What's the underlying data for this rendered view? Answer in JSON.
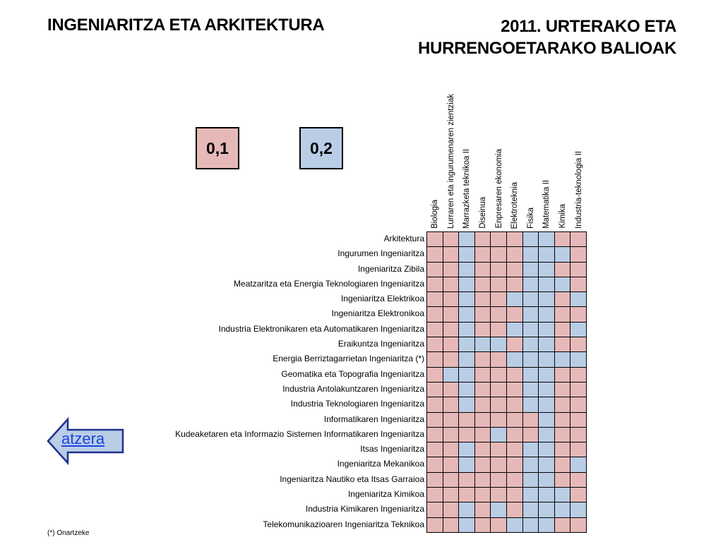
{
  "header": {
    "title_left": "INGENIARITZA ETA ARKITEKTURA",
    "title_right_line1": "2011. URTERAKO ETA",
    "title_right_line2": "HURRENGOETARAKO BALIOAK"
  },
  "legend": {
    "weight_01": {
      "label": "0,1",
      "color": "#e6b9b8"
    },
    "weight_02": {
      "label": "0,2",
      "color": "#b9cde5"
    }
  },
  "colors": {
    "grid_line": "#000000",
    "back_arrow_fill": "#b9cde5",
    "back_arrow_stroke": "#1f2f8f",
    "link": "#1a43e0"
  },
  "columns": [
    "Biologia",
    "Lurraren eta ingurumenaren zientziak",
    "Marrazketa teknikoa II",
    "Diseinua",
    "Enpresaren ekonomia",
    "Elektroteknia",
    "Fisika",
    "Matematika II",
    "Kimika",
    "Industria-teknologia II"
  ],
  "rows": [
    {
      "label": "Arkitektura",
      "values": [
        "0,1",
        "0,1",
        "0,2",
        "0,1",
        "0,1",
        "0,1",
        "0,2",
        "0,2",
        "0,1",
        "0,1"
      ]
    },
    {
      "label": "Ingurumen Ingeniaritza",
      "values": [
        "0,1",
        "0,1",
        "0,2",
        "0,1",
        "0,1",
        "0,1",
        "0,2",
        "0,2",
        "0,2",
        "0,1"
      ]
    },
    {
      "label": "Ingeniaritza Zibila",
      "values": [
        "0,1",
        "0,1",
        "0,2",
        "0,1",
        "0,1",
        "0,1",
        "0,2",
        "0,2",
        "0,1",
        "0,1"
      ]
    },
    {
      "label": "Meatzaritza eta Energia Teknologiaren Ingeniaritza",
      "values": [
        "0,1",
        "0,1",
        "0,2",
        "0,1",
        "0,1",
        "0,1",
        "0,2",
        "0,2",
        "0,2",
        "0,1"
      ]
    },
    {
      "label": "Ingeniaritza Elektrikoa",
      "values": [
        "0,1",
        "0,1",
        "0,2",
        "0,1",
        "0,1",
        "0,2",
        "0,2",
        "0,2",
        "0,1",
        "0,2"
      ]
    },
    {
      "label": "Ingeniaritza Elektronikoa",
      "values": [
        "0,1",
        "0,1",
        "0,2",
        "0,1",
        "0,1",
        "0,1",
        "0,2",
        "0,2",
        "0,1",
        "0,1"
      ]
    },
    {
      "label": "Industria Elektronikaren eta Automatikaren Ingeniaritza",
      "values": [
        "0,1",
        "0,1",
        "0,2",
        "0,1",
        "0,1",
        "0,2",
        "0,2",
        "0,2",
        "0,1",
        "0,2"
      ]
    },
    {
      "label": "Eraikuntza Ingeniaritza",
      "values": [
        "0,1",
        "0,1",
        "0,2",
        "0,2",
        "0,2",
        "0,1",
        "0,2",
        "0,2",
        "0,1",
        "0,1"
      ]
    },
    {
      "label": "Energia Berriztagarrietan Ingeniaritza (*)",
      "values": [
        "0,1",
        "0,1",
        "0,2",
        "0,1",
        "0,1",
        "0,2",
        "0,2",
        "0,2",
        "0,2",
        "0,2"
      ]
    },
    {
      "label": "Geomatika eta Topografia Ingeniaritza",
      "values": [
        "0,1",
        "0,2",
        "0,2",
        "0,1",
        "0,1",
        "0,1",
        "0,2",
        "0,2",
        "0,1",
        "0,1"
      ]
    },
    {
      "label": "Industria Antolakuntzaren Ingeniaritza",
      "values": [
        "0,1",
        "0,1",
        "0,2",
        "0,1",
        "0,1",
        "0,1",
        "0,2",
        "0,2",
        "0,1",
        "0,1"
      ]
    },
    {
      "label": "Industria Teknologiaren Ingeniaritza",
      "values": [
        "0,1",
        "0,1",
        "0,2",
        "0,1",
        "0,1",
        "0,1",
        "0,2",
        "0,2",
        "0,1",
        "0,1"
      ]
    },
    {
      "label": "Informatikaren Ingeniaritza",
      "values": [
        "0,1",
        "0,1",
        "0,1",
        "0,1",
        "0,1",
        "0,1",
        "0,1",
        "0,2",
        "0,1",
        "0,1"
      ]
    },
    {
      "label": "Kudeaketaren eta Informazio Sistemen Informatikaren Ingeniaritza",
      "values": [
        "0,1",
        "0,1",
        "0,1",
        "0,1",
        "0,2",
        "0,1",
        "0,1",
        "0,2",
        "0,1",
        "0,1"
      ]
    },
    {
      "label": "Itsas Ingeniaritza",
      "values": [
        "0,1",
        "0,1",
        "0,2",
        "0,1",
        "0,1",
        "0,1",
        "0,2",
        "0,2",
        "0,1",
        "0,1"
      ]
    },
    {
      "label": "Ingeniaritza Mekanikoa",
      "values": [
        "0,1",
        "0,1",
        "0,2",
        "0,1",
        "0,1",
        "0,1",
        "0,2",
        "0,2",
        "0,1",
        "0,2"
      ]
    },
    {
      "label": "Ingeniaritza Nautiko eta Itsas Garraioa",
      "values": [
        "0,1",
        "0,1",
        "0,1",
        "0,1",
        "0,1",
        "0,1",
        "0,2",
        "0,2",
        "0,1",
        "0,1"
      ]
    },
    {
      "label": "Ingeniaritza Kimikoa",
      "values": [
        "0,1",
        "0,1",
        "0,1",
        "0,1",
        "0,1",
        "0,1",
        "0,2",
        "0,2",
        "0,2",
        "0,1"
      ]
    },
    {
      "label": "Industria Kimikaren Ingeniaritza",
      "values": [
        "0,1",
        "0,1",
        "0,2",
        "0,1",
        "0,2",
        "0,1",
        "0,2",
        "0,2",
        "0,2",
        "0,2"
      ]
    },
    {
      "label": "Telekomunikazioaren Ingeniaritza Teknikoa",
      "values": [
        "0,1",
        "0,1",
        "0,2",
        "0,1",
        "0,1",
        "0,2",
        "0,2",
        "0,2",
        "0,1",
        "0,1"
      ]
    }
  ],
  "footnote": "(*) Onartzeke",
  "nav": {
    "back_label": "atzera"
  }
}
